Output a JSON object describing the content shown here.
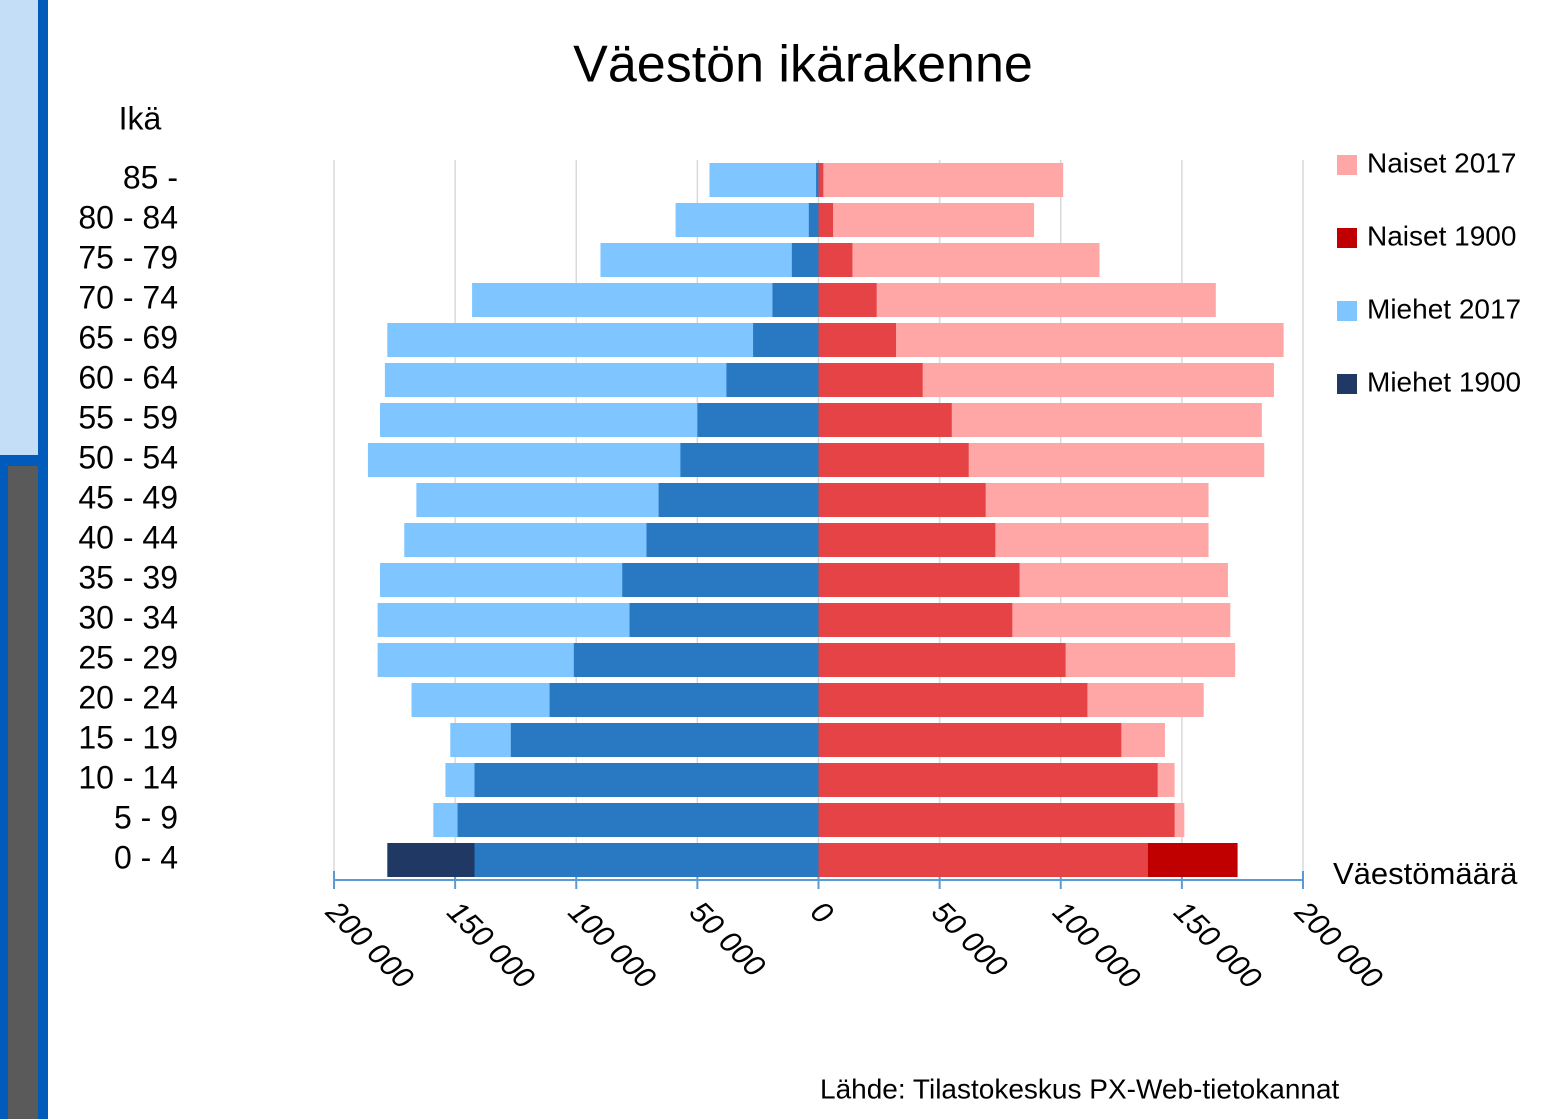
{
  "chart_data": {
    "type": "pyramid",
    "title": "Väestön ikärakenne",
    "y_label": "Ikä",
    "x_label": "Väestömäärä",
    "source": "Lähde: Tilastokeskus PX-Web-tietokannat",
    "categories": [
      "0 - 4",
      "5 - 9",
      "10 - 14",
      "15 - 19",
      "20 - 24",
      "25 - 29",
      "30 - 34",
      "35 - 39",
      "40 - 44",
      "45 - 49",
      "50 - 54",
      "55 - 59",
      "60 - 64",
      "65 - 69",
      "70 - 74",
      "75 - 79",
      "80 - 84",
      "85 -"
    ],
    "series": [
      {
        "name": "Naiset 2017",
        "color": "#ffa6a6",
        "values": [
          136000,
          151000,
          147000,
          143000,
          159000,
          172000,
          170000,
          169000,
          161000,
          161000,
          184000,
          183000,
          188000,
          192000,
          164000,
          116000,
          89000,
          101000
        ]
      },
      {
        "name": "Naiset 1900",
        "color": "#c00000",
        "overlap_color": "#e64346",
        "values": [
          173000,
          147000,
          140000,
          125000,
          111000,
          102000,
          80000,
          83000,
          73000,
          69000,
          62000,
          55000,
          43000,
          32000,
          24000,
          14000,
          6000,
          2000
        ]
      },
      {
        "name": "Miehet 2017",
        "color": "#7fc5ff",
        "values": [
          -142000,
          -159000,
          -154000,
          -152000,
          -168000,
          -182000,
          -182000,
          -181000,
          -171000,
          -166000,
          -186000,
          -181000,
          -179000,
          -178000,
          -143000,
          -90000,
          -59000,
          -45000
        ]
      },
      {
        "name": "Miehet 1900",
        "color": "#203864",
        "overlap_color": "#2878c2",
        "values": [
          -178000,
          -149000,
          -142000,
          -127000,
          -111000,
          -101000,
          -78000,
          -81000,
          -71000,
          -66000,
          -57000,
          -50000,
          -38000,
          -27000,
          -19000,
          -11000,
          -4000,
          -1000
        ]
      }
    ],
    "xlim": [
      -200000,
      200000
    ],
    "xticks": [
      {
        "value": -200000,
        "label": "200 000"
      },
      {
        "value": -150000,
        "label": "150 000"
      },
      {
        "value": -100000,
        "label": "100 000"
      },
      {
        "value": -50000,
        "label": "50 000"
      },
      0,
      {
        "value": 50000,
        "label": "50 000"
      },
      {
        "value": 100000,
        "label": "100 000"
      },
      {
        "value": 150000,
        "label": "150 000"
      },
      {
        "value": 200000,
        "label": "200 000"
      }
    ],
    "grid": true,
    "legend": "right"
  }
}
